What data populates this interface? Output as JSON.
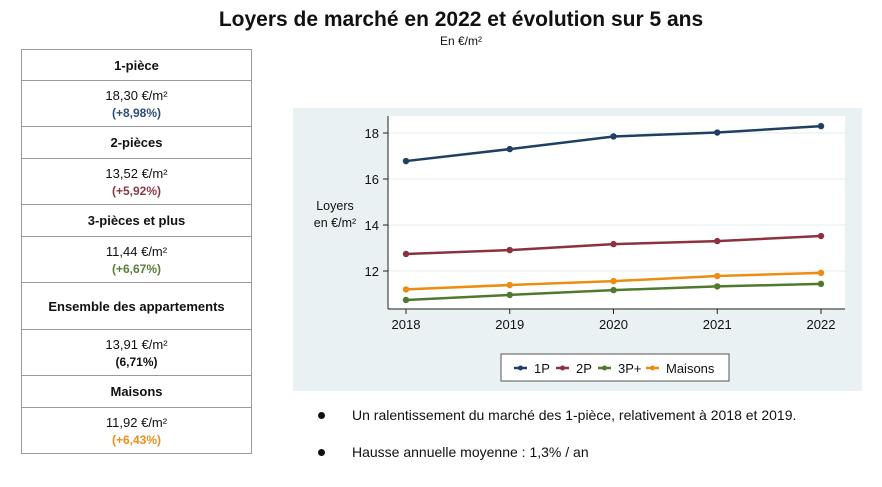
{
  "title": "Loyers de marché en 2022 et évolution sur 5 ans",
  "subtitle": "En €/m²",
  "table": [
    {
      "label": "1-pièce",
      "value": "18,30 €/m²",
      "change": "(+8,98%)",
      "color": "#2e4e7a"
    },
    {
      "label": "2-pièces",
      "value": "13,52 €/m²",
      "change": "(+5,92%)",
      "color": "#8b3a45"
    },
    {
      "label": "3-pièces et plus",
      "value": "11,44 €/m²",
      "change": "(+6,67%)",
      "color": "#5a7d38"
    },
    {
      "label": "Ensemble des appartements",
      "value": "13,91 €/m²",
      "change": "(6,71%)",
      "color": "#111111"
    },
    {
      "label": "Maisons",
      "value": "11,92 €/m²",
      "change": "(+6,43%)",
      "color": "#e8901e"
    }
  ],
  "bullets": [
    "Un ralentissement du marché des 1-pièce, relativement à 2018 et 2019.",
    "Hausse annuelle moyenne : 1,3% / an"
  ],
  "chart_data": {
    "type": "line",
    "title": "",
    "xlabel": "",
    "ylabel": "Loyers en €/m²",
    "ylabel_lines": [
      "Loyers",
      "en €/m²"
    ],
    "x": [
      2018,
      2019,
      2020,
      2021,
      2022
    ],
    "x_tick_labels": [
      "2018",
      "2019",
      "2020",
      "2021",
      "2022"
    ],
    "y_ticks": [
      12,
      14,
      16,
      18
    ],
    "y_tick_labels": [
      "12",
      "14",
      "16",
      "18"
    ],
    "ylim": [
      10.3,
      18.6
    ],
    "grid": true,
    "legend_position": "bottom",
    "series": [
      {
        "name": "1P",
        "color": "#1f3f63",
        "values": [
          16.78,
          17.3,
          17.85,
          18.02,
          18.3
        ]
      },
      {
        "name": "2P",
        "color": "#8b323e",
        "values": [
          12.74,
          12.91,
          13.17,
          13.3,
          13.52
        ]
      },
      {
        "name": "3P+",
        "color": "#4f7a2e",
        "values": [
          10.74,
          10.96,
          11.17,
          11.33,
          11.44
        ]
      },
      {
        "name": "Maisons",
        "color": "#ec8d12",
        "values": [
          11.2,
          11.39,
          11.56,
          11.78,
          11.92
        ]
      }
    ]
  }
}
